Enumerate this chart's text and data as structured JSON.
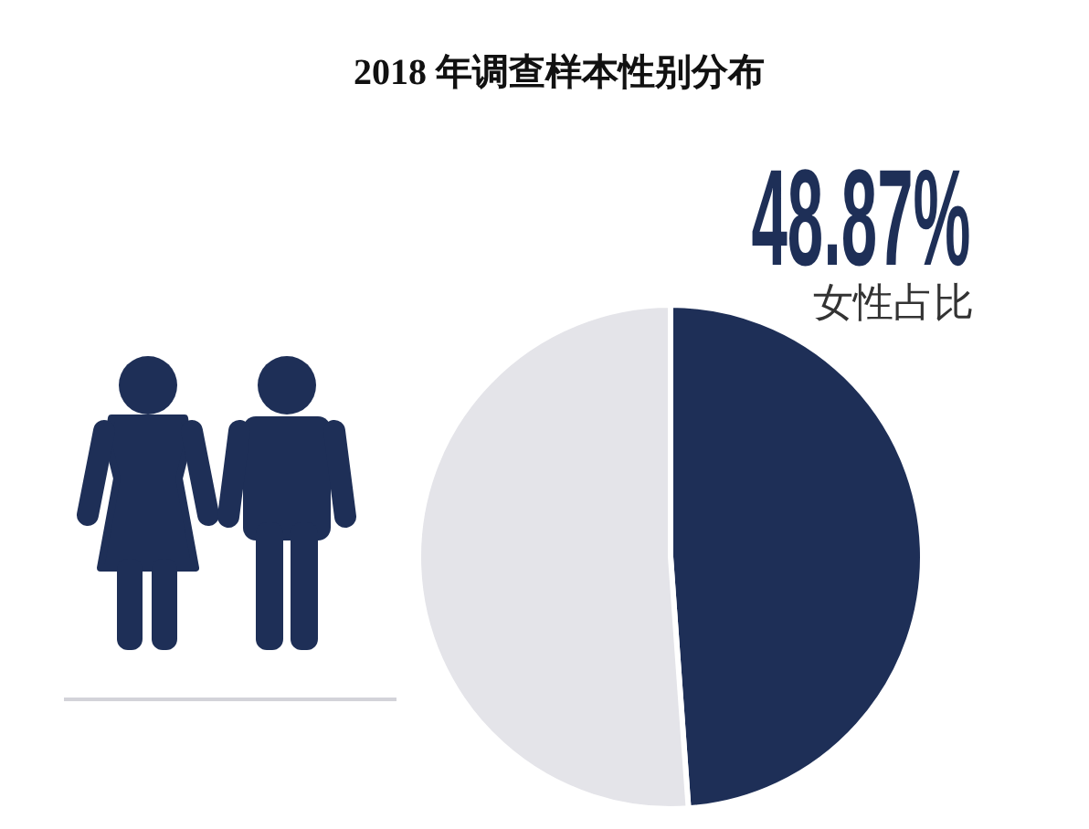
{
  "chart_data": {
    "type": "pie",
    "title": "2018 年调查样本性别分布",
    "categories": [
      "女性占比",
      null
    ],
    "values": [
      48.87,
      51.13
    ],
    "colors": [
      "#1e2f57",
      "#e4e4e9"
    ],
    "value_labels": [
      "48.87%",
      null
    ]
  }
}
